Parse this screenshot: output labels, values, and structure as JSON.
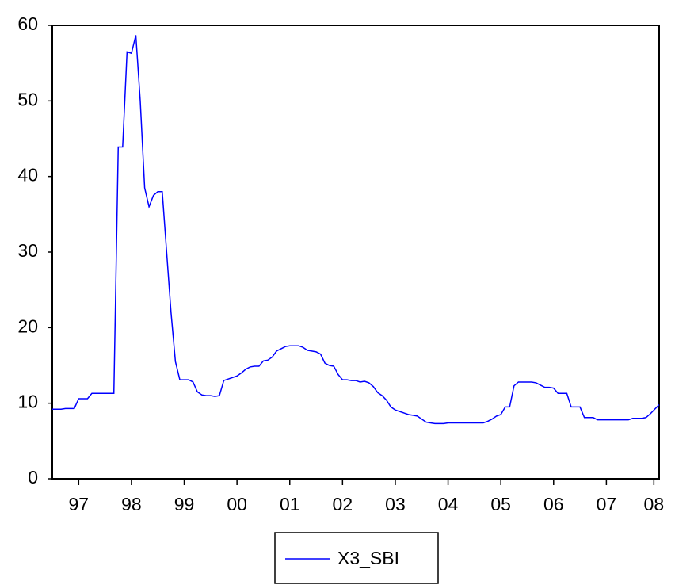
{
  "chart_data": {
    "type": "line",
    "x": [
      1997,
      1997.0833,
      1997.1667,
      1997.25,
      1997.3333,
      1997.4167,
      1997.5,
      1997.5833,
      1997.6667,
      1997.75,
      1997.8333,
      1997.9167,
      1998,
      1998.0833,
      1998.1667,
      1998.25,
      1998.3333,
      1998.4167,
      1998.5,
      1998.5833,
      1998.6667,
      1998.75,
      1998.8333,
      1998.9167,
      1999,
      1999.0833,
      1999.1667,
      1999.25,
      1999.3333,
      1999.4167,
      1999.5,
      1999.5833,
      1999.6667,
      1999.75,
      1999.8333,
      1999.9167,
      2000,
      2000.0833,
      2000.1667,
      2000.25,
      2000.3333,
      2000.4167,
      2000.5,
      2000.5833,
      2000.6667,
      2000.75,
      2000.8333,
      2000.9167,
      2001,
      2001.0833,
      2001.1667,
      2001.25,
      2001.3333,
      2001.4167,
      2001.5,
      2001.5833,
      2001.6667,
      2001.75,
      2001.8333,
      2001.9167,
      2002,
      2002.0833,
      2002.1667,
      2002.25,
      2002.3333,
      2002.4167,
      2002.5,
      2002.5833,
      2002.6667,
      2002.75,
      2002.8333,
      2002.9167,
      2003,
      2003.0833,
      2003.1667,
      2003.25,
      2003.3333,
      2003.4167,
      2003.5,
      2003.5833,
      2003.6667,
      2003.75,
      2003.8333,
      2003.9167,
      2004,
      2004.0833,
      2004.1667,
      2004.25,
      2004.3333,
      2004.4167,
      2004.5,
      2004.5833,
      2004.6667,
      2004.75,
      2004.8333,
      2004.9167,
      2005,
      2005.0833,
      2005.1667,
      2005.25,
      2005.3333,
      2005.4167,
      2005.5,
      2005.5833,
      2005.6667,
      2005.75,
      2005.8333,
      2005.9167,
      2006,
      2006.0833,
      2006.1667,
      2006.25,
      2006.3333,
      2006.4167,
      2006.5,
      2006.5833,
      2006.6667,
      2006.75,
      2006.8333,
      2006.9167,
      2007,
      2007.0833,
      2007.1667,
      2007.25,
      2007.3333,
      2007.4167,
      2007.5,
      2007.5833,
      2007.6667,
      2007.75,
      2007.8333,
      2007.9167,
      2008,
      2008.0833,
      2008.1667,
      2008.25,
      2008.3333,
      2008.4167,
      2008.5
    ],
    "series": [
      {
        "name": "X3_SBI",
        "color": "#0000ff",
        "values": [
          9.2,
          9.2,
          9.2,
          9.3,
          9.3,
          9.3,
          10.6,
          10.6,
          10.6,
          11.3,
          11.3,
          11.3,
          11.3,
          11.3,
          11.3,
          43.9,
          43.9,
          56.5,
          56.3,
          58.7,
          50,
          38.5,
          36,
          37.5,
          38,
          38,
          30,
          22,
          15.5,
          13.1,
          13.1,
          13.1,
          12.8,
          11.5,
          11.1,
          11,
          11,
          10.9,
          11,
          13,
          13.2,
          13.4,
          13.6,
          14,
          14.5,
          14.8,
          14.9,
          14.9,
          15.6,
          15.7,
          16.1,
          16.9,
          17.2,
          17.5,
          17.6,
          17.6,
          17.6,
          17.4,
          17,
          16.9,
          16.8,
          16.5,
          15.3,
          15,
          14.9,
          13.8,
          13.1,
          13.1,
          13,
          13,
          12.8,
          12.9,
          12.7,
          12.2,
          11.4,
          11,
          10.4,
          9.5,
          9.1,
          8.9,
          8.7,
          8.5,
          8.4,
          8.3,
          7.9,
          7.5,
          7.4,
          7.3,
          7.3,
          7.3,
          7.4,
          7.4,
          7.4,
          7.4,
          7.4,
          7.4,
          7.4,
          7.4,
          7.4,
          7.6,
          7.9,
          8.3,
          8.5,
          9.5,
          9.5,
          12.3,
          12.8,
          12.8,
          12.8,
          12.8,
          12.7,
          12.4,
          12.1,
          12.1,
          12,
          11.3,
          11.3,
          11.3,
          9.5,
          9.5,
          9.5,
          8.1,
          8.1,
          8.1,
          7.8,
          7.8,
          7.8,
          7.8,
          7.8,
          7.8,
          7.8,
          7.8,
          8,
          8,
          8,
          8.1,
          8.6,
          9.2,
          9.8
        ]
      }
    ],
    "xlim": [
      1997,
      2008.5
    ],
    "xticks": [
      {
        "value": 1997.5,
        "label": "97"
      },
      {
        "value": 1998.5,
        "label": "98"
      },
      {
        "value": 1999.5,
        "label": "99"
      },
      {
        "value": 2000.5,
        "label": "00"
      },
      {
        "value": 2001.5,
        "label": "01"
      },
      {
        "value": 2002.5,
        "label": "02"
      },
      {
        "value": 2003.5,
        "label": "03"
      },
      {
        "value": 2004.5,
        "label": "04"
      },
      {
        "value": 2005.5,
        "label": "05"
      },
      {
        "value": 2006.5,
        "label": "06"
      },
      {
        "value": 2007.5,
        "label": "07"
      },
      {
        "value": 2008.4,
        "label": "08"
      }
    ],
    "ylim": [
      0,
      60
    ],
    "yticks": [
      0,
      10,
      20,
      30,
      40,
      50,
      60
    ]
  }
}
